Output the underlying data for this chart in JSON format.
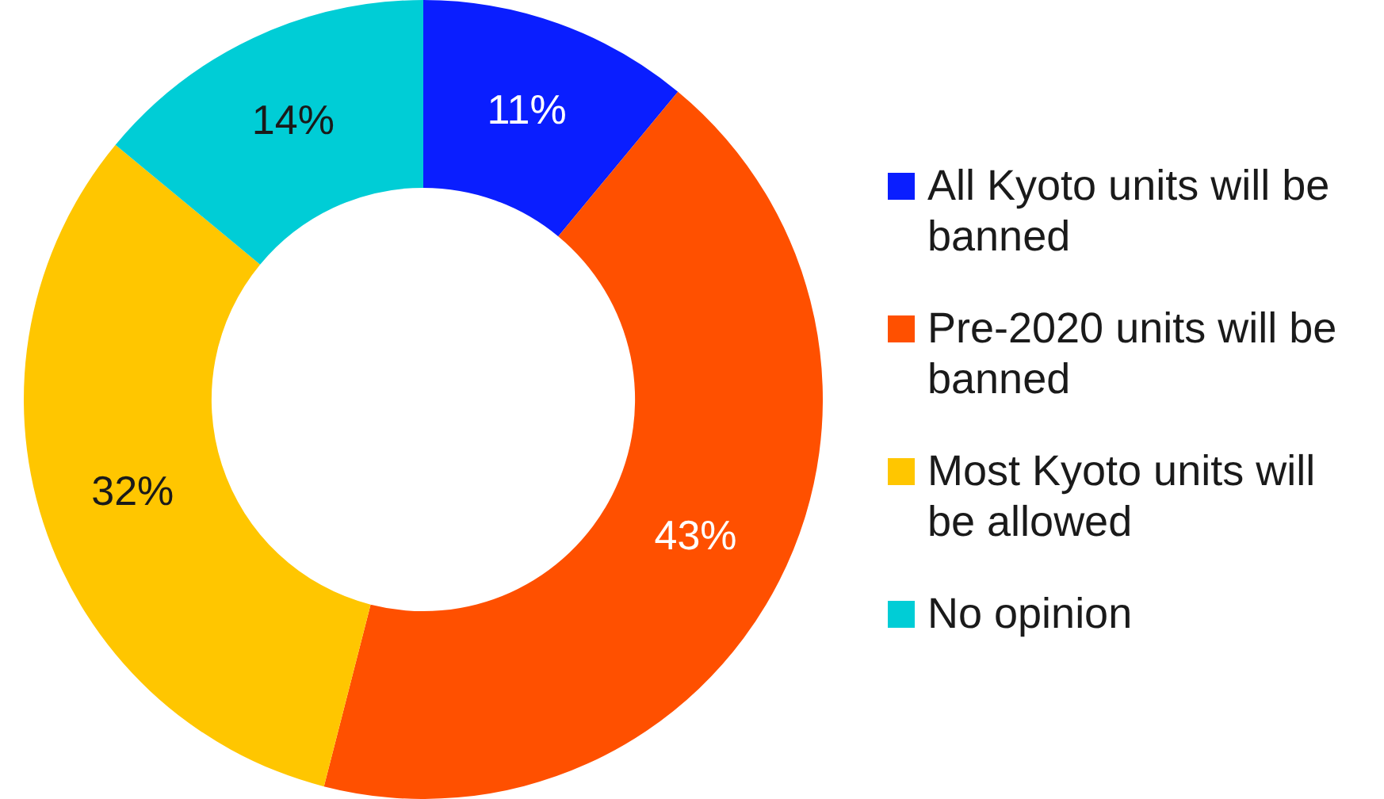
{
  "chart_data": {
    "type": "donut",
    "categories": [
      "All Kyoto units will be banned",
      "Pre-2020 units will be banned",
      "Most Kyoto units will be allowed",
      "No opinion"
    ],
    "values": [
      11,
      43,
      32,
      14
    ],
    "value_labels": [
      "11%",
      "43%",
      "32%",
      "14%"
    ],
    "colors": [
      "#0a1eff",
      "#ff5000",
      "#ffc600",
      "#00cdd6"
    ],
    "legend": "right"
  }
}
